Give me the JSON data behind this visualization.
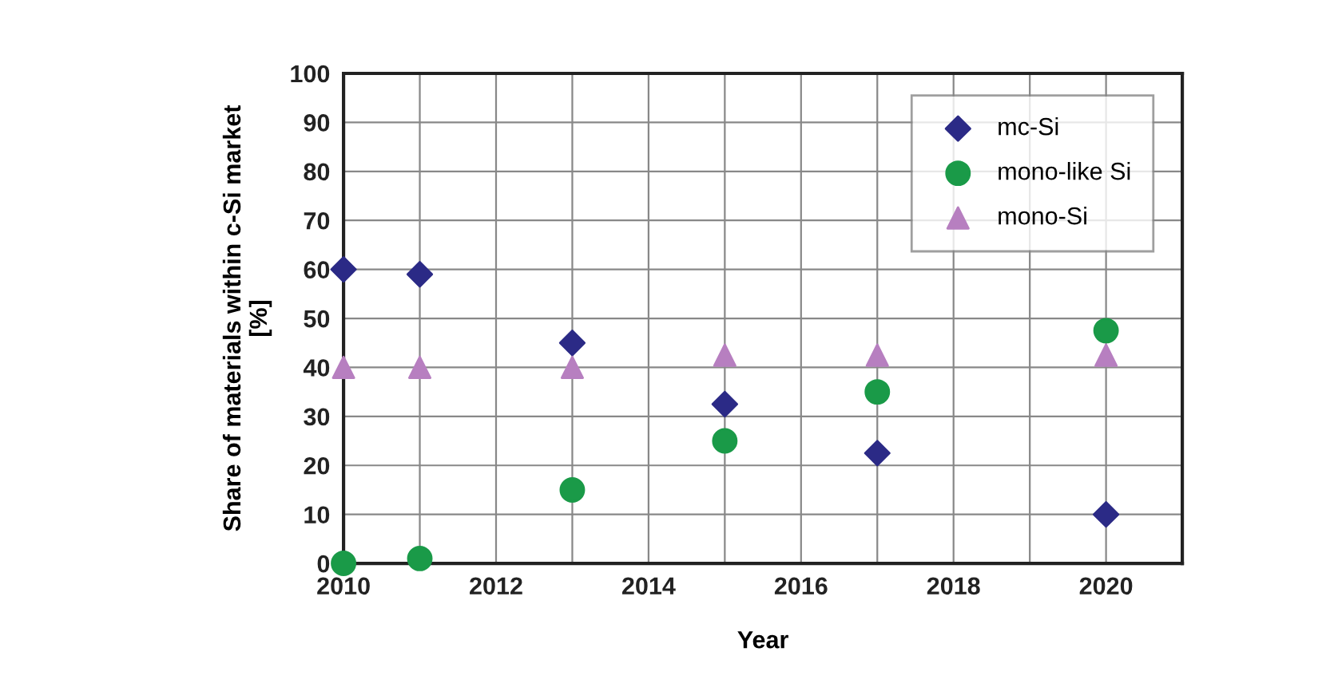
{
  "chart_data": {
    "type": "scatter",
    "xlabel": "Year",
    "ylabel": "Share of materials within c-Si market\n[%]",
    "x": [
      2010,
      2011,
      2013,
      2015,
      2017,
      2020
    ],
    "series": [
      {
        "name": "mc-Si",
        "color": "#2b2a86",
        "marker": "diamond",
        "values": [
          60,
          59,
          45,
          32.5,
          22.5,
          10
        ]
      },
      {
        "name": "mono-like Si",
        "color": "#1a9a48",
        "marker": "circle",
        "values": [
          0,
          1,
          15,
          25,
          35,
          47.5
        ]
      },
      {
        "name": "mono-Si",
        "color": "#b77fc0",
        "marker": "triangle",
        "values": [
          40,
          40,
          40,
          42.5,
          42.5,
          42.5
        ]
      }
    ],
    "xlim": [
      2010,
      2021
    ],
    "xticks": [
      2010,
      {
        "value": 2011,
        "label": null
      },
      2012,
      {
        "value": 2013,
        "label": null
      },
      2014,
      {
        "value": 2015,
        "label": null
      },
      2016,
      {
        "value": 2017,
        "label": null
      },
      2018,
      {
        "value": 2019,
        "label": null
      },
      2020,
      {
        "value": 2021,
        "label": null
      }
    ],
    "ylim": [
      0,
      100
    ],
    "yticks": [
      0,
      10,
      20,
      30,
      40,
      50,
      60,
      70,
      80,
      90,
      100
    ],
    "grid": true,
    "legend": "top right"
  }
}
